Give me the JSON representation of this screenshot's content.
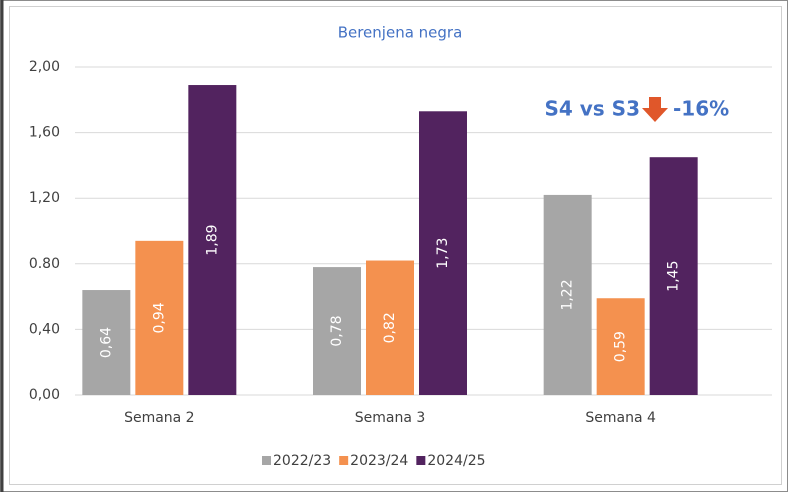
{
  "chart_data": {
    "type": "bar",
    "title": "Berenjena negra",
    "categories": [
      "Semana 2",
      "Semana 3",
      "Semana 4"
    ],
    "series": [
      {
        "name": "2022/23",
        "color": "#a6a6a6",
        "values": [
          0.64,
          0.78,
          1.22
        ],
        "value_labels": [
          "0,64",
          "0,78",
          "1,22"
        ]
      },
      {
        "name": "2023/24",
        "color": "#f4914f",
        "values": [
          0.94,
          0.82,
          0.59
        ],
        "value_labels": [
          "0,94",
          "0,82",
          "0,59"
        ]
      },
      {
        "name": "2024/25",
        "color": "#52235f",
        "values": [
          1.89,
          1.73,
          1.45
        ],
        "value_labels": [
          "1,89",
          "1,73",
          "1,45"
        ]
      }
    ],
    "ylim": [
      0,
      2
    ],
    "yticks": [
      {
        "value": 0,
        "label": "0,00"
      },
      {
        "value": 0.4,
        "label": "0,40"
      },
      {
        "value": 0.8,
        "label": "0.80"
      },
      {
        "value": 1.2,
        "label": "1,20"
      },
      {
        "value": 1.6,
        "label": "1,60"
      },
      {
        "value": 2,
        "label": "2,00"
      }
    ],
    "grid": true,
    "legend": "bottom",
    "annotation": [
      "S4 vs S3",
      "-16%"
    ]
  }
}
